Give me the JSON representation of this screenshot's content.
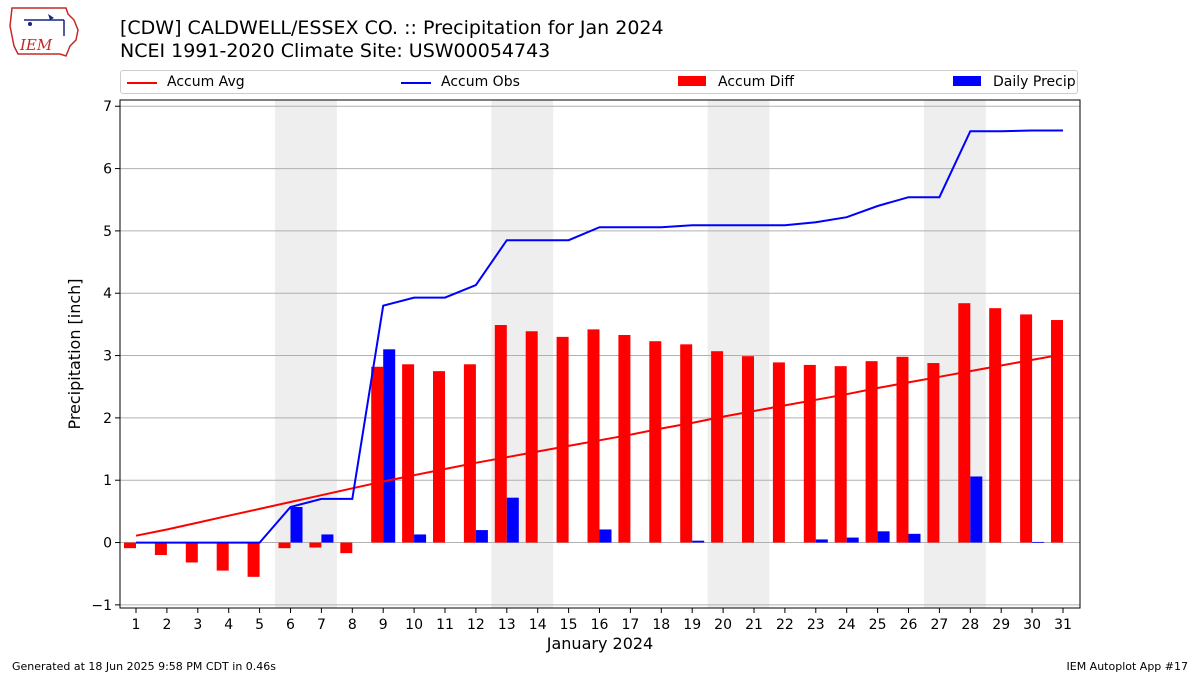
{
  "logo": {
    "text": "IEM"
  },
  "header": {
    "title_line1": "[CDW] CALDWELL/ESSEX CO. :: Precipitation for Jan 2024",
    "title_line2": "NCEI 1991-2020 Climate Site: USW00054743"
  },
  "legend": {
    "items": [
      {
        "label": "Accum Avg",
        "kind": "line",
        "color": "#ff0000"
      },
      {
        "label": "Accum Obs",
        "kind": "line",
        "color": "#0000ff"
      },
      {
        "label": "Accum Diff",
        "kind": "bar",
        "color": "#ff0000"
      },
      {
        "label": "Daily Precip",
        "kind": "bar",
        "color": "#0000ff"
      }
    ]
  },
  "chart_data": {
    "type": "bar",
    "xlabel": "January 2024",
    "ylabel": "Precipitation [inch]",
    "ylim": [
      -1.05,
      7.1
    ],
    "yticks": [
      -1,
      0,
      1,
      2,
      3,
      4,
      5,
      6,
      7
    ],
    "grid": "horizontal",
    "legend_position": "top",
    "days": [
      1,
      2,
      3,
      4,
      5,
      6,
      7,
      8,
      9,
      10,
      11,
      12,
      13,
      14,
      15,
      16,
      17,
      18,
      19,
      20,
      21,
      22,
      23,
      24,
      25,
      26,
      27,
      28,
      29,
      30,
      31
    ],
    "weekend_shading": [
      [
        6,
        7
      ],
      [
        13,
        14
      ],
      [
        20,
        21
      ],
      [
        27,
        28
      ]
    ],
    "series": [
      {
        "name": "Accum Avg",
        "type": "line",
        "color": "#ff0000",
        "values": [
          0.11,
          0.21,
          0.32,
          0.43,
          0.54,
          0.65,
          0.76,
          0.87,
          0.98,
          1.08,
          1.18,
          1.28,
          1.37,
          1.46,
          1.55,
          1.64,
          1.73,
          1.83,
          1.92,
          2.02,
          2.11,
          2.2,
          2.29,
          2.38,
          2.48,
          2.57,
          2.66,
          2.75,
          2.84,
          2.93,
          3.02
        ]
      },
      {
        "name": "Accum Obs",
        "type": "line",
        "color": "#0000ff",
        "values": [
          0.0,
          0.0,
          0.0,
          0.0,
          0.0,
          0.57,
          0.7,
          0.7,
          3.8,
          3.93,
          3.93,
          4.13,
          4.85,
          4.85,
          4.85,
          5.06,
          5.06,
          5.06,
          5.09,
          5.09,
          5.09,
          5.09,
          5.14,
          5.22,
          5.4,
          5.54,
          5.54,
          6.6,
          6.6,
          6.61,
          6.61
        ]
      },
      {
        "name": "Accum Diff",
        "type": "bar",
        "color": "#ff0000",
        "values": [
          -0.09,
          -0.2,
          -0.32,
          -0.45,
          -0.55,
          -0.09,
          -0.08,
          -0.17,
          2.82,
          2.86,
          2.75,
          2.86,
          3.49,
          3.39,
          3.3,
          3.42,
          3.33,
          3.23,
          3.18,
          3.07,
          2.99,
          2.89,
          2.85,
          2.83,
          2.91,
          2.98,
          2.88,
          3.84,
          3.76,
          3.66,
          3.57
        ]
      },
      {
        "name": "Daily Precip",
        "type": "bar",
        "color": "#0000ff",
        "values": [
          0.0,
          0.0,
          0.0,
          0.0,
          0.0,
          0.57,
          0.13,
          0.0,
          3.1,
          0.13,
          0.0,
          0.2,
          0.72,
          0.0,
          0.0,
          0.21,
          0.0,
          0.0,
          0.03,
          0.0,
          0.0,
          0.0,
          0.05,
          0.08,
          0.18,
          0.14,
          0.0,
          1.06,
          0.0,
          0.01,
          0.0
        ]
      }
    ]
  },
  "footer": {
    "left": "Generated at 18 Jun 2025 9:58 PM CDT in 0.46s",
    "right": "IEM Autoplot App #17"
  }
}
